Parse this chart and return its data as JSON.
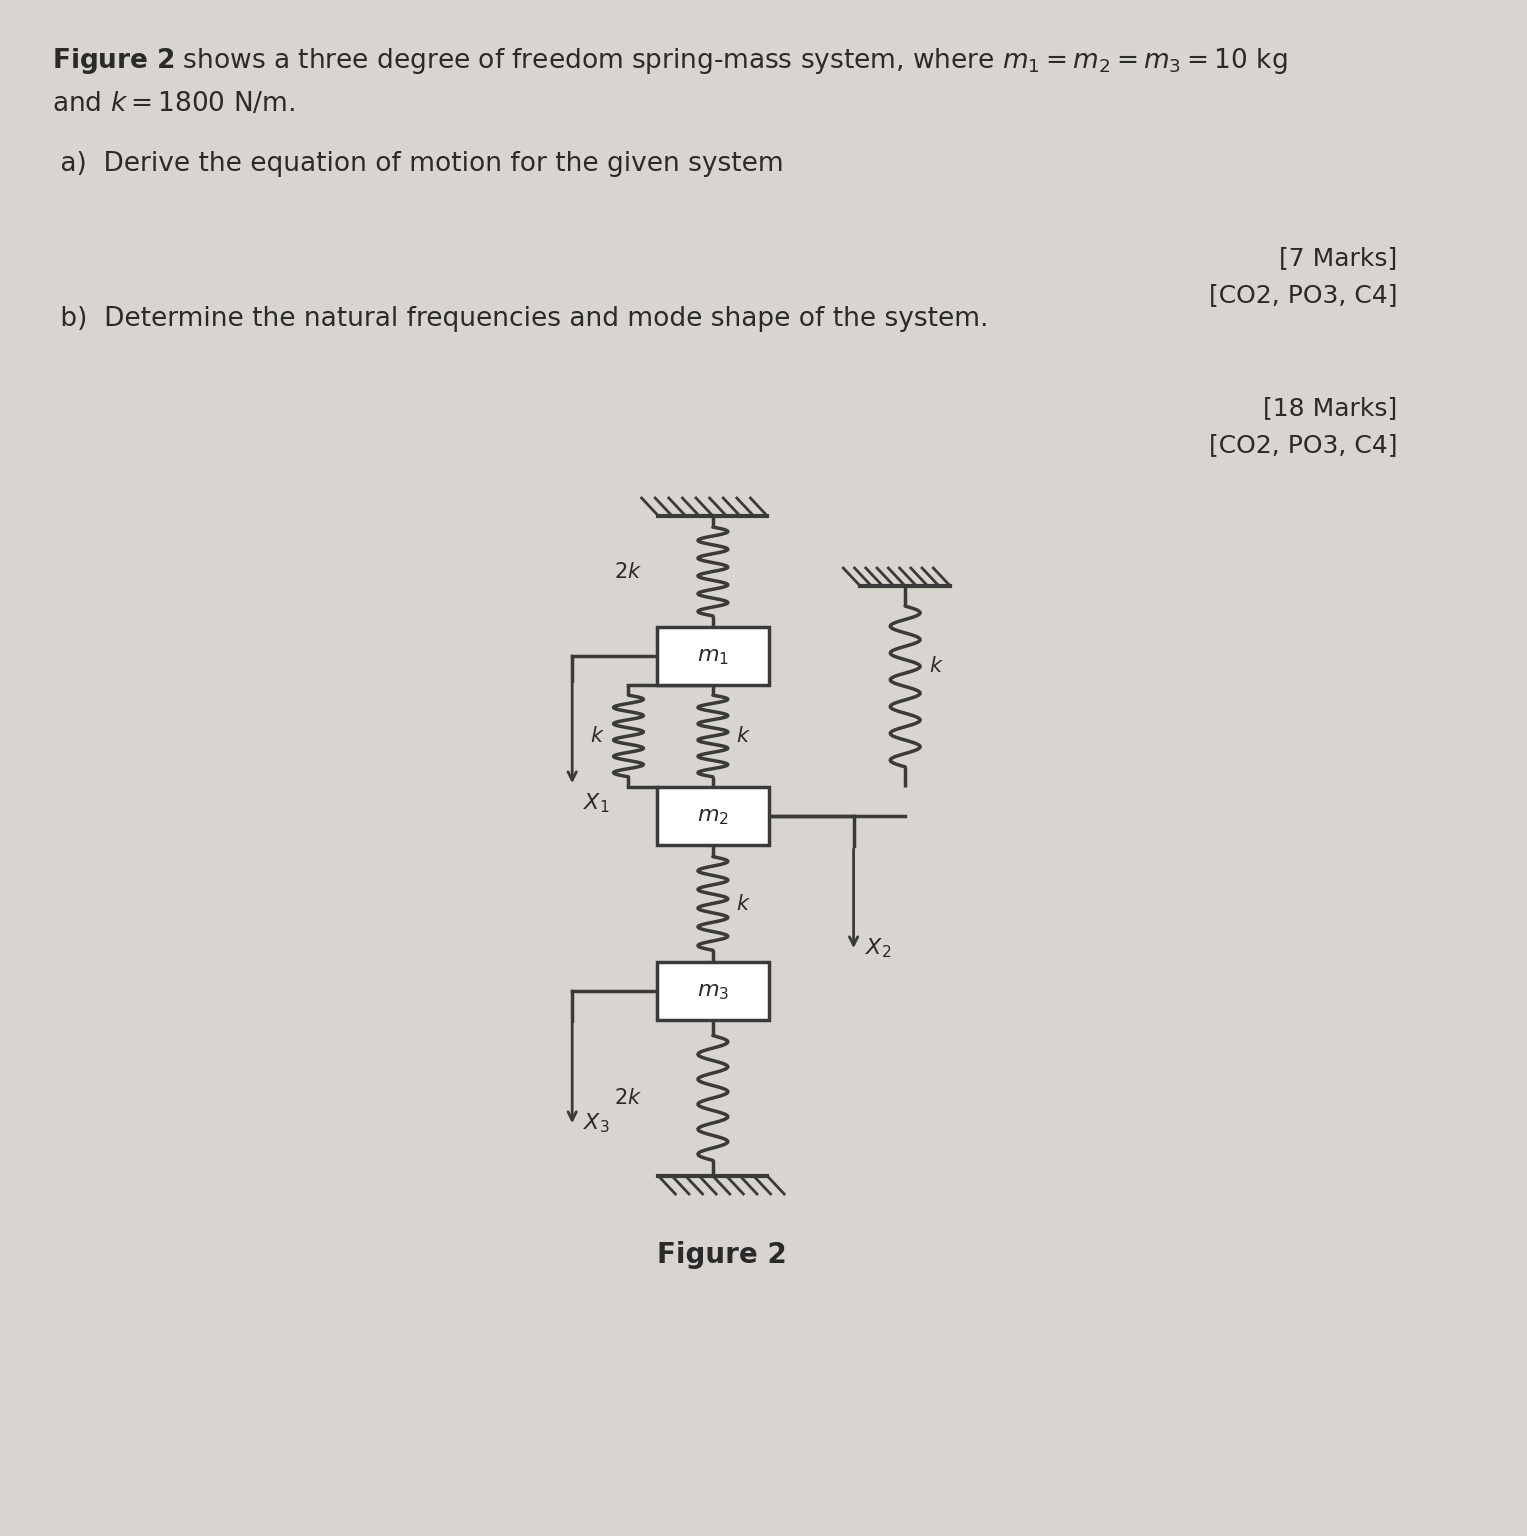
{
  "bg_color": "#d8d5d0",
  "text_color": "#2a2a2a",
  "line_color": "#3a3a3a",
  "spring_color": "#3a3a3a",
  "mass_color": "#ffffff",
  "mass_edge_color": "#3a3a3a",
  "fig_caption": "Figure 2",
  "marks_a": "[7 Marks]",
  "co_a": "[CO2, PO3, C4]",
  "marks_b": "[18 Marks]",
  "co_b": "[CO2, PO3, C4]"
}
